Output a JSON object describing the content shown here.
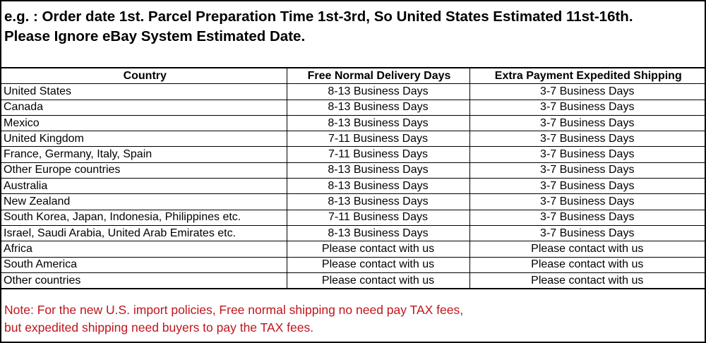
{
  "intro": {
    "line1": "e.g. : Order date 1st. Parcel Preparation Time 1st-3rd, So United States Estimated 11st-16th.",
    "line2": "Please Ignore eBay System Estimated Date."
  },
  "table": {
    "headers": [
      "Country",
      "Free Normal Delivery Days",
      "Extra Payment Expedited Shipping"
    ],
    "rows": [
      [
        "United States",
        "8-13 Business Days",
        "3-7 Business Days"
      ],
      [
        "Canada",
        "8-13 Business Days",
        "3-7 Business Days"
      ],
      [
        "Mexico",
        "8-13 Business Days",
        "3-7 Business Days"
      ],
      [
        "United Kingdom",
        "7-11 Business Days",
        "3-7 Business Days"
      ],
      [
        "France, Germany, Italy, Spain",
        "7-11 Business Days",
        "3-7 Business Days"
      ],
      [
        "Other Europe countries",
        "8-13 Business Days",
        "3-7 Business Days"
      ],
      [
        "Australia",
        "8-13 Business Days",
        "3-7 Business Days"
      ],
      [
        "New Zealand",
        "8-13 Business Days",
        "3-7 Business Days"
      ],
      [
        "South Korea, Japan, Indonesia, Philippines etc.",
        "7-11 Business Days",
        "3-7 Business Days"
      ],
      [
        "Israel, Saudi Arabia, United Arab Emirates etc.",
        "8-13 Business Days",
        "3-7 Business Days"
      ],
      [
        "Africa",
        "Please contact with us",
        "Please contact with us"
      ],
      [
        "South America",
        "Please contact with us",
        "Please contact with us"
      ],
      [
        "Other countries",
        "Please contact with us",
        "Please contact with us"
      ]
    ]
  },
  "note": {
    "line1": "Note: For the new U.S. import policies, Free normal shipping no need pay TAX fees,",
    "line2": "but expedited shipping need buyers to pay the TAX fees.",
    "color": "#c0141b"
  }
}
